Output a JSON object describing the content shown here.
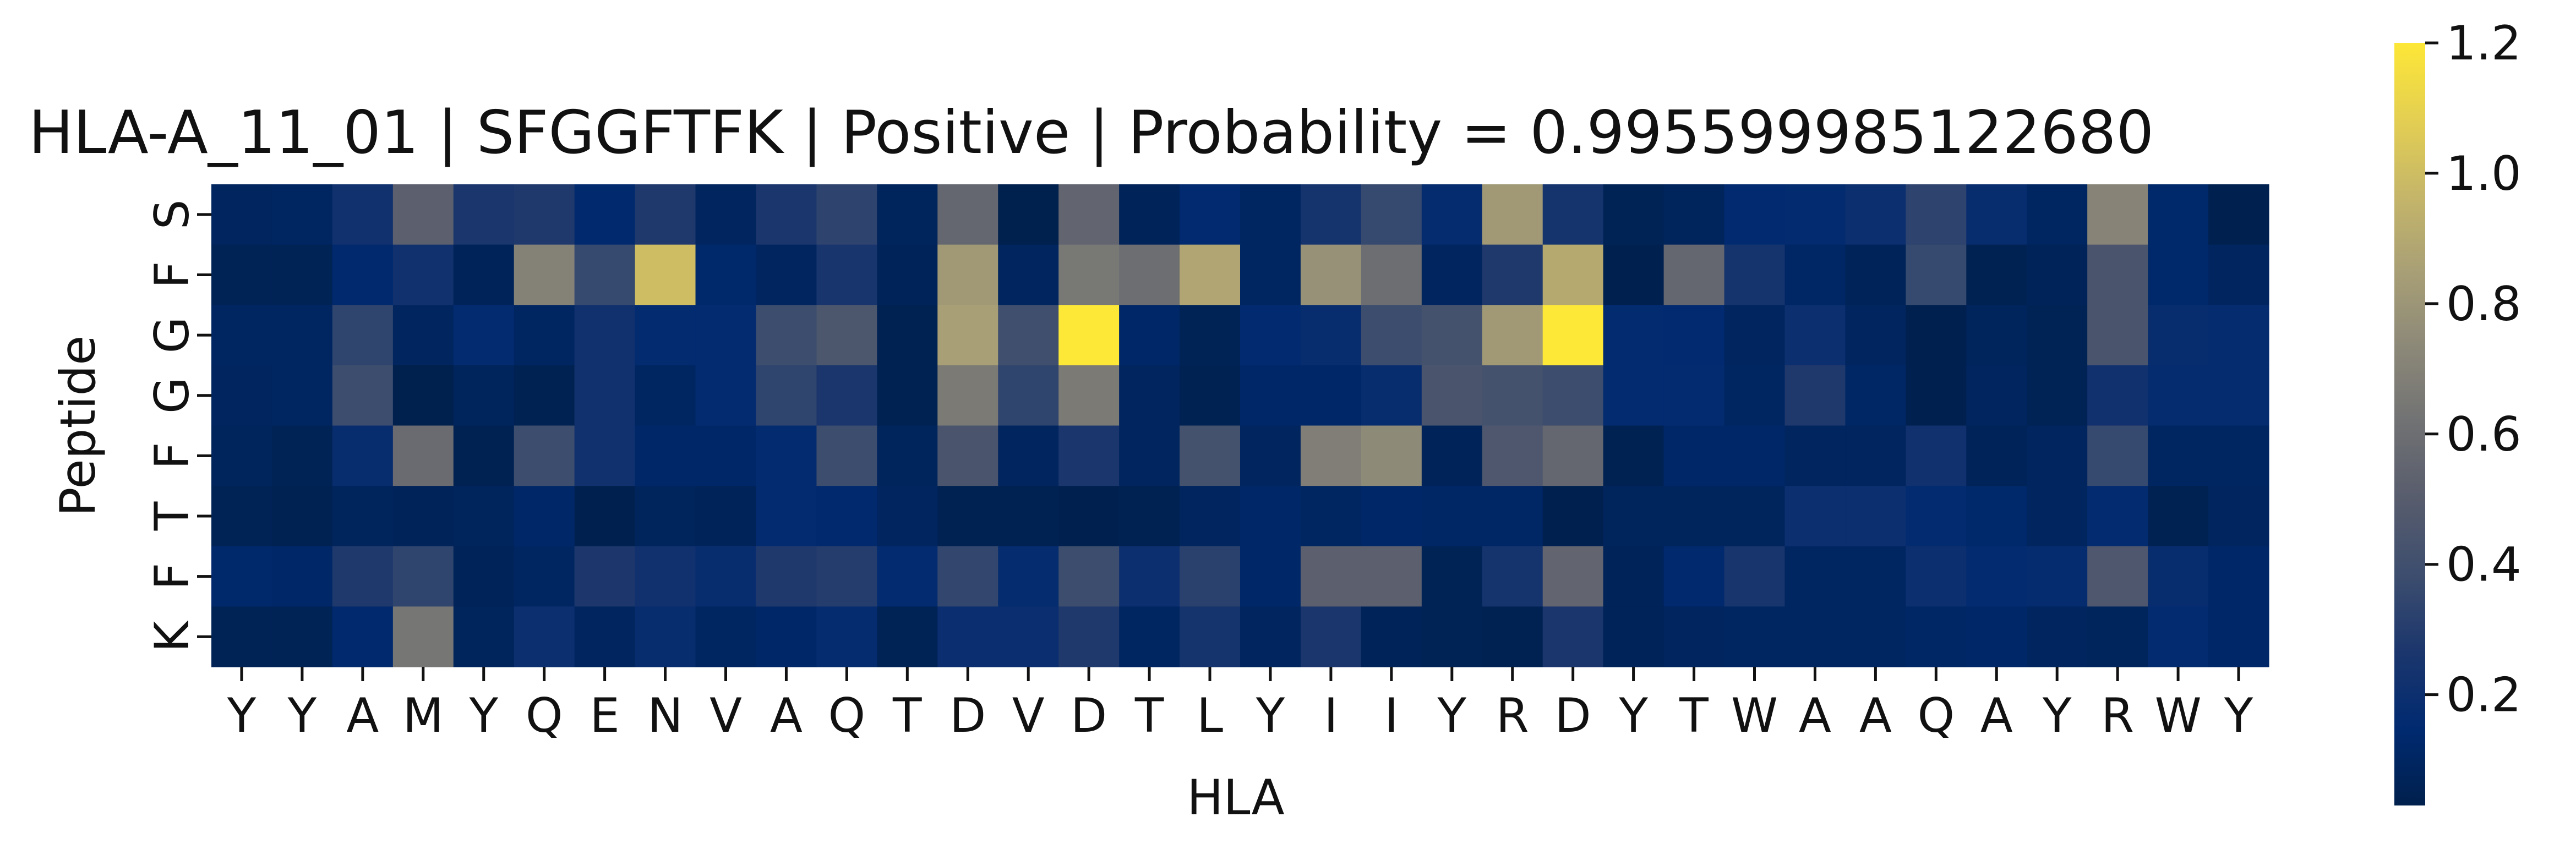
{
  "chart_data": {
    "type": "heatmap",
    "title": "HLA-A_11_01 | SFGGFTFK | Positive | Probability = 0.995599985122680",
    "xlabel": "HLA",
    "ylabel": "Peptide",
    "x_categories": [
      "Y",
      "Y",
      "A",
      "M",
      "Y",
      "Q",
      "E",
      "N",
      "V",
      "A",
      "Q",
      "T",
      "D",
      "V",
      "D",
      "T",
      "L",
      "Y",
      "I",
      "I",
      "Y",
      "R",
      "D",
      "Y",
      "T",
      "W",
      "A",
      "A",
      "Q",
      "A",
      "Y",
      "R",
      "W",
      "Y"
    ],
    "y_categories": [
      "S",
      "F",
      "G",
      "G",
      "F",
      "T",
      "F",
      "K"
    ],
    "values": [
      [
        0.09,
        0.1,
        0.22,
        0.52,
        0.26,
        0.28,
        0.14,
        0.28,
        0.09,
        0.26,
        0.33,
        0.08,
        0.56,
        0.03,
        0.55,
        0.07,
        0.15,
        0.1,
        0.24,
        0.36,
        0.17,
        0.82,
        0.24,
        0.06,
        0.08,
        0.15,
        0.16,
        0.2,
        0.33,
        0.18,
        0.1,
        0.71,
        0.13,
        0.04
      ],
      [
        0.06,
        0.06,
        0.14,
        0.22,
        0.07,
        0.7,
        0.36,
        1.0,
        0.13,
        0.09,
        0.25,
        0.07,
        0.82,
        0.09,
        0.65,
        0.6,
        0.88,
        0.1,
        0.78,
        0.6,
        0.09,
        0.28,
        0.9,
        0.04,
        0.56,
        0.24,
        0.11,
        0.07,
        0.36,
        0.05,
        0.07,
        0.44,
        0.13,
        0.09
      ],
      [
        0.1,
        0.1,
        0.34,
        0.09,
        0.16,
        0.1,
        0.22,
        0.16,
        0.16,
        0.38,
        0.45,
        0.05,
        0.85,
        0.4,
        1.2,
        0.12,
        0.06,
        0.15,
        0.18,
        0.38,
        0.42,
        0.82,
        1.2,
        0.16,
        0.15,
        0.09,
        0.2,
        0.09,
        0.04,
        0.08,
        0.06,
        0.44,
        0.18,
        0.17
      ],
      [
        0.09,
        0.1,
        0.38,
        0.02,
        0.08,
        0.05,
        0.22,
        0.1,
        0.16,
        0.34,
        0.26,
        0.05,
        0.66,
        0.34,
        0.66,
        0.09,
        0.05,
        0.12,
        0.12,
        0.18,
        0.44,
        0.42,
        0.38,
        0.16,
        0.16,
        0.1,
        0.28,
        0.11,
        0.04,
        0.09,
        0.06,
        0.22,
        0.17,
        0.17
      ],
      [
        0.08,
        0.06,
        0.18,
        0.58,
        0.05,
        0.38,
        0.22,
        0.12,
        0.12,
        0.16,
        0.38,
        0.08,
        0.44,
        0.09,
        0.26,
        0.09,
        0.42,
        0.09,
        0.68,
        0.74,
        0.07,
        0.46,
        0.56,
        0.05,
        0.12,
        0.12,
        0.09,
        0.09,
        0.22,
        0.07,
        0.09,
        0.36,
        0.1,
        0.1
      ],
      [
        0.06,
        0.05,
        0.08,
        0.07,
        0.08,
        0.12,
        0.04,
        0.08,
        0.07,
        0.16,
        0.14,
        0.09,
        0.05,
        0.05,
        0.04,
        0.05,
        0.09,
        0.12,
        0.1,
        0.12,
        0.11,
        0.11,
        0.04,
        0.08,
        0.08,
        0.08,
        0.2,
        0.2,
        0.16,
        0.13,
        0.09,
        0.16,
        0.05,
        0.09
      ],
      [
        0.13,
        0.12,
        0.28,
        0.34,
        0.07,
        0.1,
        0.27,
        0.22,
        0.18,
        0.28,
        0.3,
        0.16,
        0.35,
        0.17,
        0.38,
        0.2,
        0.32,
        0.12,
        0.52,
        0.52,
        0.06,
        0.24,
        0.55,
        0.07,
        0.14,
        0.25,
        0.1,
        0.1,
        0.2,
        0.16,
        0.17,
        0.46,
        0.18,
        0.12
      ],
      [
        0.06,
        0.06,
        0.14,
        0.64,
        0.08,
        0.2,
        0.09,
        0.18,
        0.1,
        0.12,
        0.17,
        0.06,
        0.19,
        0.19,
        0.28,
        0.1,
        0.24,
        0.09,
        0.26,
        0.07,
        0.06,
        0.05,
        0.26,
        0.07,
        0.09,
        0.1,
        0.1,
        0.1,
        0.11,
        0.12,
        0.09,
        0.08,
        0.16,
        0.12
      ]
    ],
    "colorscale": "cividis",
    "vmin": 0.03,
    "vmax": 1.2,
    "colorbar_ticks": [
      "0.2",
      "0.4",
      "0.6",
      "0.8",
      "1.0",
      "1.2"
    ],
    "colorbar_tick_values": [
      0.2,
      0.4,
      0.6,
      0.8,
      1.0,
      1.2
    ],
    "grid": false
  }
}
